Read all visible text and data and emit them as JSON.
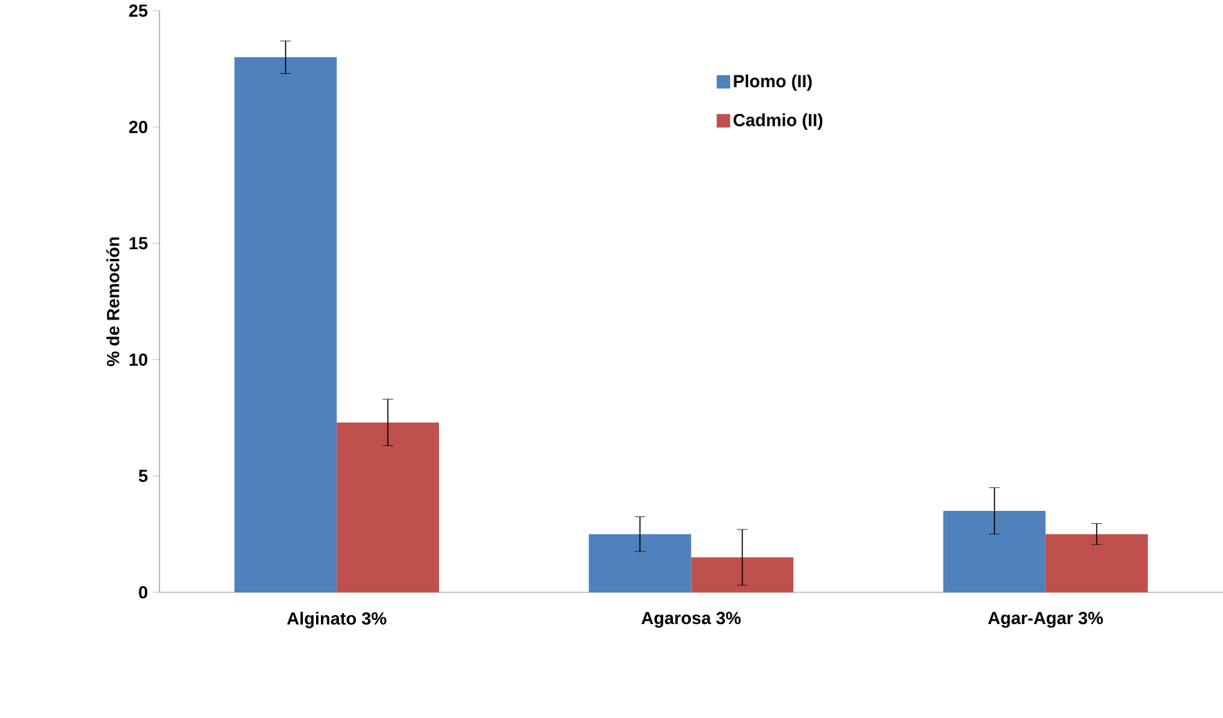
{
  "chart_data": {
    "type": "bar",
    "ylabel": "% de Remoción",
    "categories": [
      "Alginato 3%",
      "Agarosa 3%",
      "Agar-Agar 3%"
    ],
    "series": [
      {
        "name": "Plomo (II)",
        "color": "#4f81bd",
        "values": [
          23,
          2.5,
          3.5
        ],
        "errors": [
          0.7,
          0.75,
          1.0
        ]
      },
      {
        "name": "Cadmio (II)",
        "color": "#c0504d",
        "values": [
          7.3,
          1.5,
          2.5
        ],
        "errors": [
          1.0,
          1.2,
          0.45
        ]
      }
    ],
    "ylim": [
      0,
      25
    ],
    "yticks": [
      0,
      5,
      10,
      15,
      20,
      25
    ],
    "grid": false,
    "legend": "top right"
  }
}
